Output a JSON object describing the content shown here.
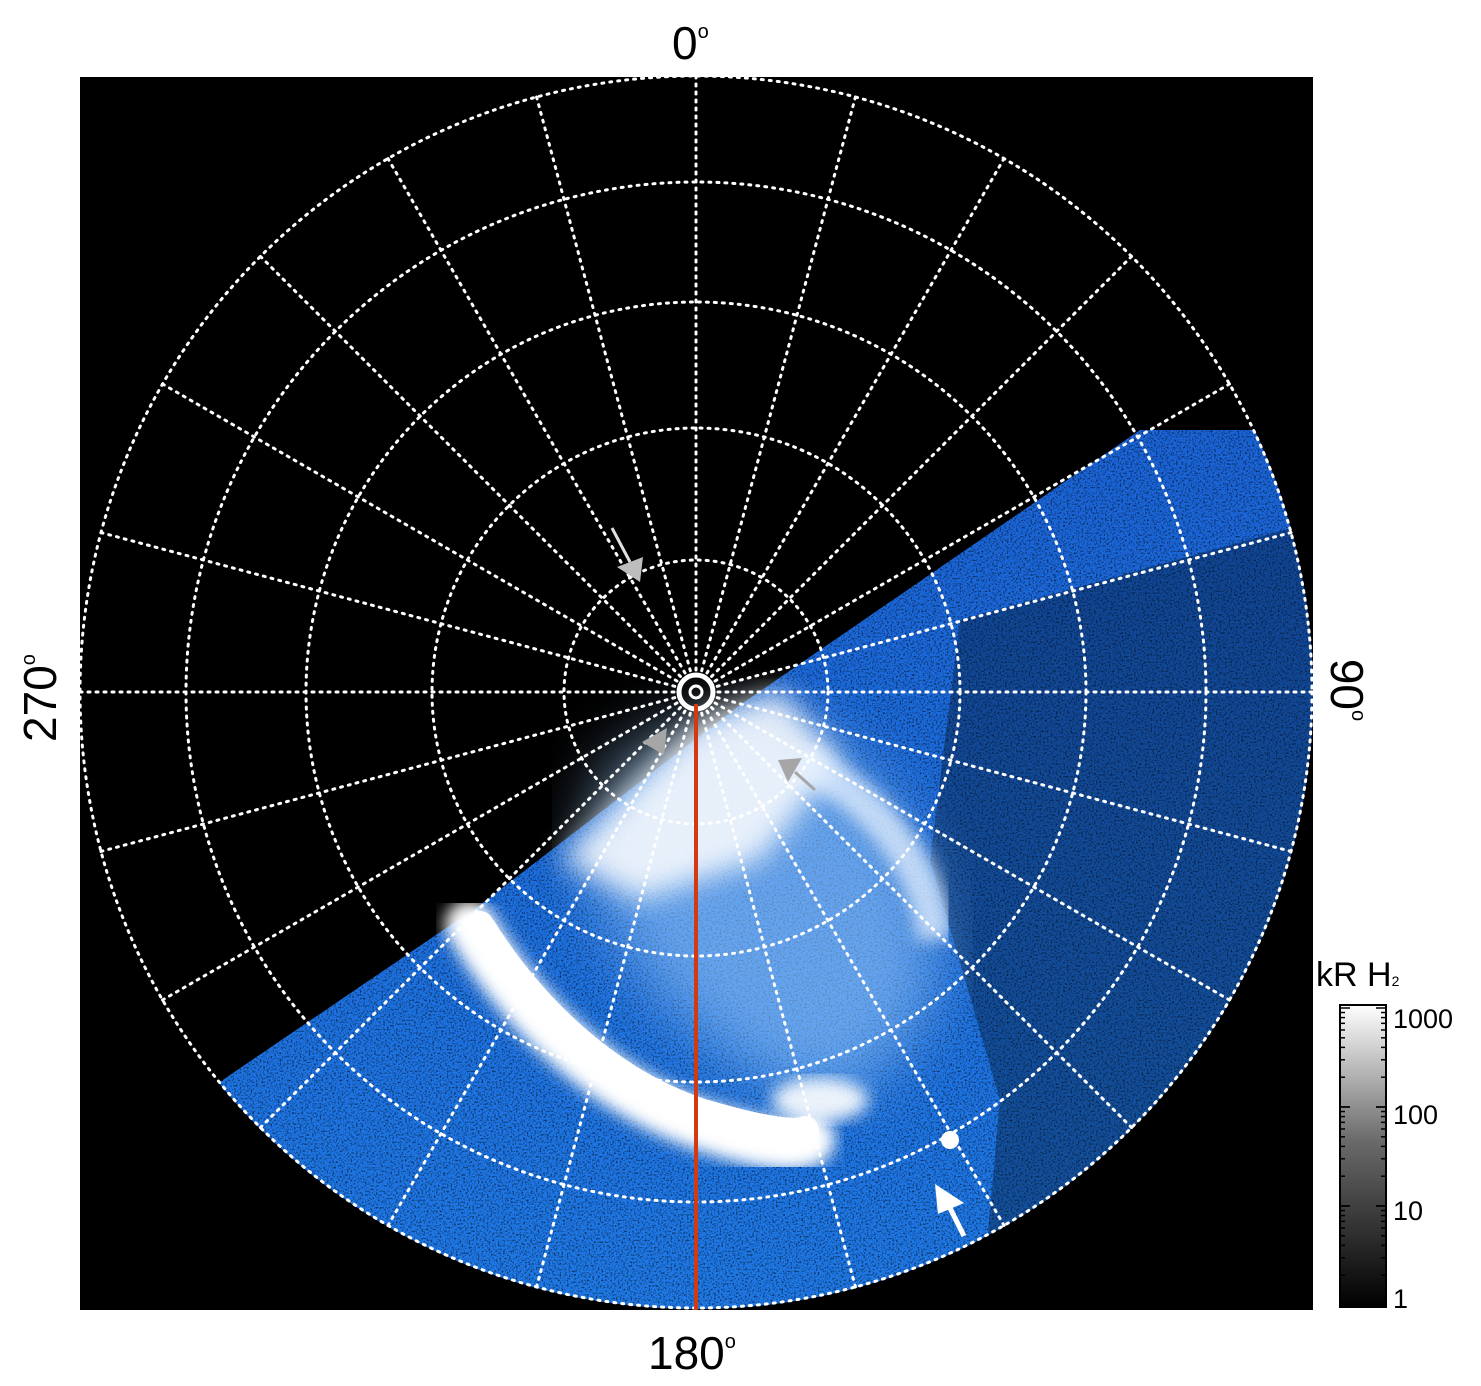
{
  "figure": {
    "labels": {
      "top": "0",
      "right": "90",
      "bottom": "180",
      "left": "270",
      "degree_symbol": "o"
    },
    "colorbar": {
      "title": "kR H",
      "title_subscript": "2",
      "ticks": [
        "1000",
        "100",
        "10",
        "1"
      ]
    },
    "colors": {
      "background": "#000000",
      "grid": "#ffffff",
      "meridian_line": "#d43a12",
      "aurora_blue": "#1a6fe0",
      "aurora_bright": "#ffffff",
      "arrow_grey": "#a6a6a6",
      "arrow_white": "#ffffff"
    },
    "annotations": [
      {
        "name": "grey-arrow-upper",
        "color": "grey"
      },
      {
        "name": "grey-arrow-lower",
        "color": "grey"
      },
      {
        "name": "grey-arrow-right",
        "color": "grey"
      },
      {
        "name": "white-arrow",
        "color": "white"
      }
    ]
  }
}
